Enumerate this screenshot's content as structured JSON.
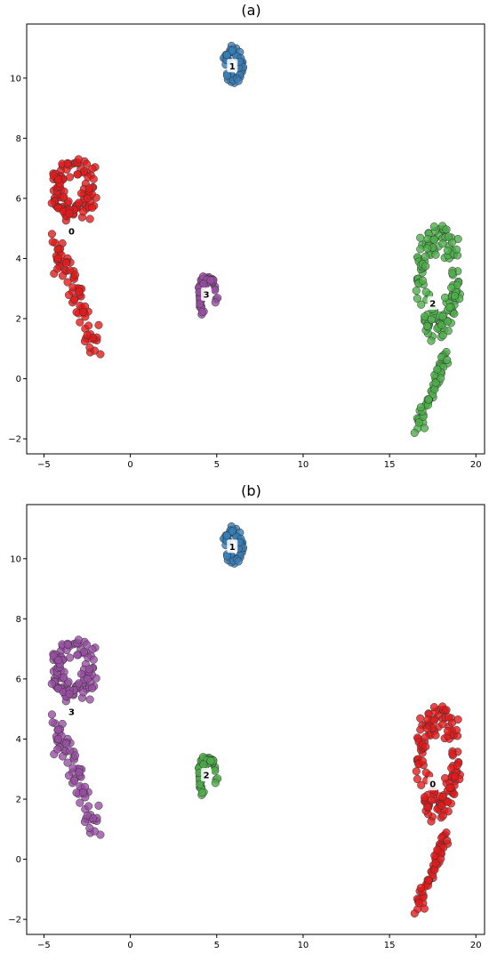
{
  "chart_data": [
    {
      "type": "scatter",
      "title": "(a)",
      "xlim": [
        -6,
        20.5
      ],
      "ylim": [
        -2.5,
        11.8
      ],
      "xticks": [
        -5,
        0,
        5,
        10,
        15,
        20
      ],
      "yticks": [
        -2,
        0,
        2,
        4,
        6,
        8,
        10
      ],
      "xtick_labels": [
        "−5",
        "0",
        "5",
        "10",
        "15",
        "20"
      ],
      "ytick_labels": [
        "−2",
        "0",
        "2",
        "4",
        "6",
        "8",
        "10"
      ],
      "grid": false,
      "clusters": [
        {
          "label": "0",
          "color": "#e41a1c",
          "label_pos": [
            -3.4,
            4.9
          ],
          "shape": "left_blob"
        },
        {
          "label": "1",
          "color": "#377eb8",
          "label_pos": [
            5.9,
            10.4
          ],
          "shape": "top_ring"
        },
        {
          "label": "2",
          "color": "#4daf4a",
          "label_pos": [
            17.5,
            2.5
          ],
          "shape": "right_comet"
        },
        {
          "label": "3",
          "color": "#984ea3",
          "label_pos": [
            4.4,
            2.8
          ],
          "shape": "small_ring"
        }
      ]
    },
    {
      "type": "scatter",
      "title": "(b)",
      "xlim": [
        -6,
        20.5
      ],
      "ylim": [
        -2.5,
        11.8
      ],
      "xticks": [
        -5,
        0,
        5,
        10,
        15,
        20
      ],
      "yticks": [
        -2,
        0,
        2,
        4,
        6,
        8,
        10
      ],
      "xtick_labels": [
        "−5",
        "0",
        "5",
        "10",
        "15",
        "20"
      ],
      "ytick_labels": [
        "−2",
        "0",
        "2",
        "4",
        "6",
        "8",
        "10"
      ],
      "grid": false,
      "clusters": [
        {
          "label": "3",
          "color": "#984ea3",
          "label_pos": [
            -3.4,
            4.9
          ],
          "shape": "left_blob"
        },
        {
          "label": "1",
          "color": "#377eb8",
          "label_pos": [
            5.9,
            10.4
          ],
          "shape": "top_ring"
        },
        {
          "label": "0",
          "color": "#e41a1c",
          "label_pos": [
            17.5,
            2.5
          ],
          "shape": "right_comet"
        },
        {
          "label": "2",
          "color": "#4daf4a",
          "label_pos": [
            4.4,
            2.8
          ],
          "shape": "small_ring"
        }
      ]
    }
  ]
}
